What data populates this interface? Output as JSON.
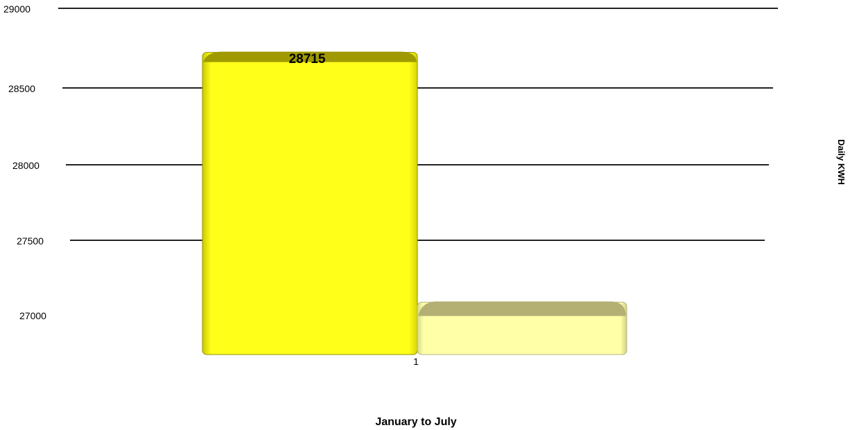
{
  "chart_data": {
    "type": "bar",
    "categories": [
      "1"
    ],
    "series": [
      {
        "values": [
          28715
        ],
        "color": "#ffff1a",
        "data_label": "28715"
      },
      {
        "values": [
          27100
        ],
        "color": "#ffffa0"
      }
    ],
    "y_ticks": [
      "29000",
      "28500",
      "28000",
      "27500",
      "27000"
    ],
    "ylim": [
      26750,
      29000
    ],
    "xlabel": "January to July",
    "ylabel": "Daily KWH",
    "grid": true,
    "style": "3d"
  }
}
